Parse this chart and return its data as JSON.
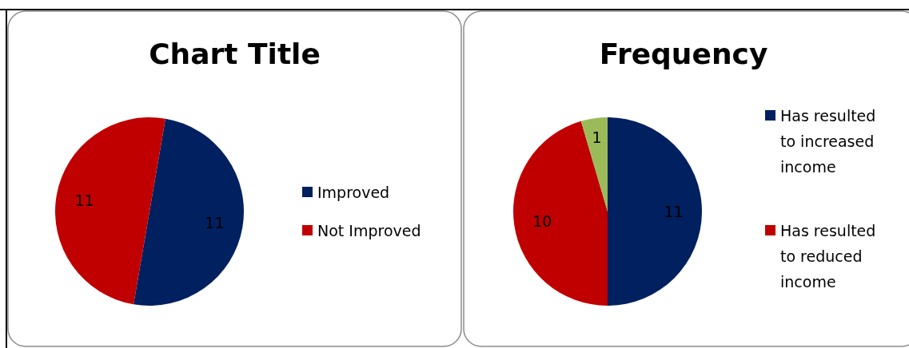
{
  "chart_data": [
    {
      "type": "pie",
      "title": "Chart Title",
      "categories": [
        "Improved",
        "Not Improved"
      ],
      "values": [
        11,
        11
      ],
      "colors": [
        "#002060",
        "#c00000"
      ],
      "data_labels": true,
      "legend": "right"
    },
    {
      "type": "pie",
      "title": "Frequency",
      "categories": [
        "Has resulted to increased income",
        "Has resulted to reduced income",
        null
      ],
      "values": [
        11,
        10,
        1
      ],
      "colors": [
        "#002060",
        "#c00000",
        "#9bbb59"
      ],
      "data_labels": true,
      "legend": "right"
    }
  ]
}
